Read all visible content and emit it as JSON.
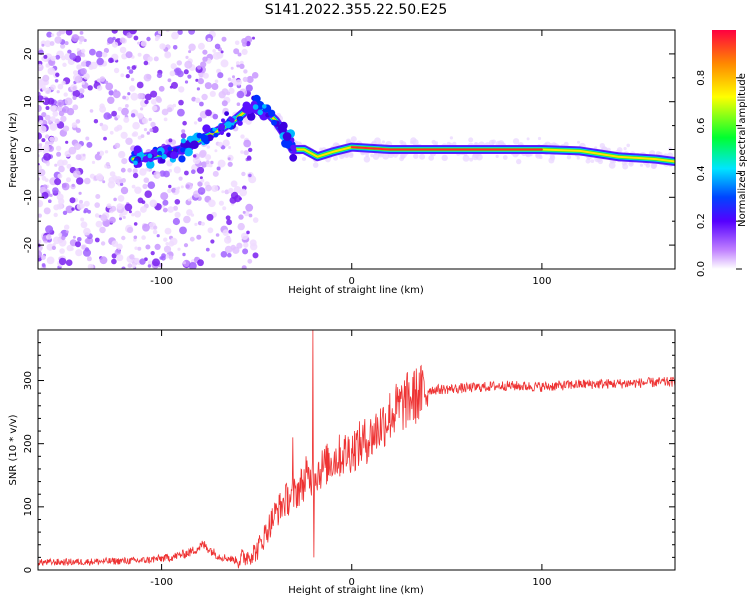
{
  "title": "S141.2022.355.22.50.E25",
  "chart_data": [
    {
      "type": "heatmap",
      "xlabel": "Height of straight line (km)",
      "ylabel": "Frequency (Hz)",
      "xlim": [
        -165,
        170
      ],
      "ylim": [
        -25,
        25
      ],
      "xticks": [
        -100,
        0,
        100
      ],
      "yticks": [
        -20,
        -10,
        0,
        10,
        20
      ],
      "colorbar": {
        "label": "Normalized spectral amplitude",
        "ticks": [
          0.0,
          0.2,
          0.4,
          0.6,
          0.8
        ],
        "range": [
          0,
          1
        ]
      },
      "ridge": [
        [
          -115,
          -2
        ],
        [
          -100,
          -1
        ],
        [
          -90,
          0
        ],
        [
          -80,
          2
        ],
        [
          -70,
          4
        ],
        [
          -62,
          6
        ],
        [
          -56,
          8
        ],
        [
          -50,
          9
        ],
        [
          -45,
          8
        ],
        [
          -40,
          6
        ],
        [
          -35,
          3
        ],
        [
          -31,
          0
        ],
        [
          -25,
          0
        ],
        [
          -18,
          -1.5
        ],
        [
          -10,
          -0.5
        ],
        [
          0,
          0.5
        ],
        [
          20,
          0
        ],
        [
          60,
          0
        ],
        [
          100,
          0
        ],
        [
          120,
          -0.3
        ],
        [
          140,
          -1.5
        ],
        [
          160,
          -2
        ],
        [
          170,
          -2.5
        ]
      ]
    },
    {
      "type": "line",
      "xlabel": "Height of straight line (km)",
      "ylabel": "SNR (10 * v/v)",
      "xlim": [
        -165,
        170
      ],
      "ylim": [
        0,
        380
      ],
      "xticks": [
        -100,
        0,
        100
      ],
      "yticks": [
        0,
        100,
        200,
        300
      ],
      "color": "#ee3333",
      "trend": [
        [
          -165,
          12
        ],
        [
          -140,
          13
        ],
        [
          -110,
          15
        ],
        [
          -95,
          20
        ],
        [
          -85,
          28
        ],
        [
          -78,
          40
        ],
        [
          -70,
          22
        ],
        [
          -60,
          15
        ],
        [
          -50,
          30
        ],
        [
          -45,
          60
        ],
        [
          -40,
          90
        ],
        [
          -35,
          110
        ],
        [
          -30,
          120
        ],
        [
          -25,
          140
        ],
        [
          -20,
          150
        ],
        [
          -10,
          175
        ],
        [
          0,
          190
        ],
        [
          10,
          210
        ],
        [
          20,
          245
        ],
        [
          30,
          270
        ],
        [
          40,
          285
        ],
        [
          60,
          288
        ],
        [
          80,
          292
        ],
        [
          100,
          290
        ],
        [
          120,
          294
        ],
        [
          140,
          295
        ],
        [
          160,
          297
        ],
        [
          170,
          298
        ]
      ],
      "spikes": [
        {
          "x": -31,
          "y": 210
        },
        {
          "x": -24,
          "y": 180
        },
        {
          "x": -20.5,
          "y": 380
        },
        {
          "x": -20,
          "y": 20
        }
      ]
    }
  ]
}
